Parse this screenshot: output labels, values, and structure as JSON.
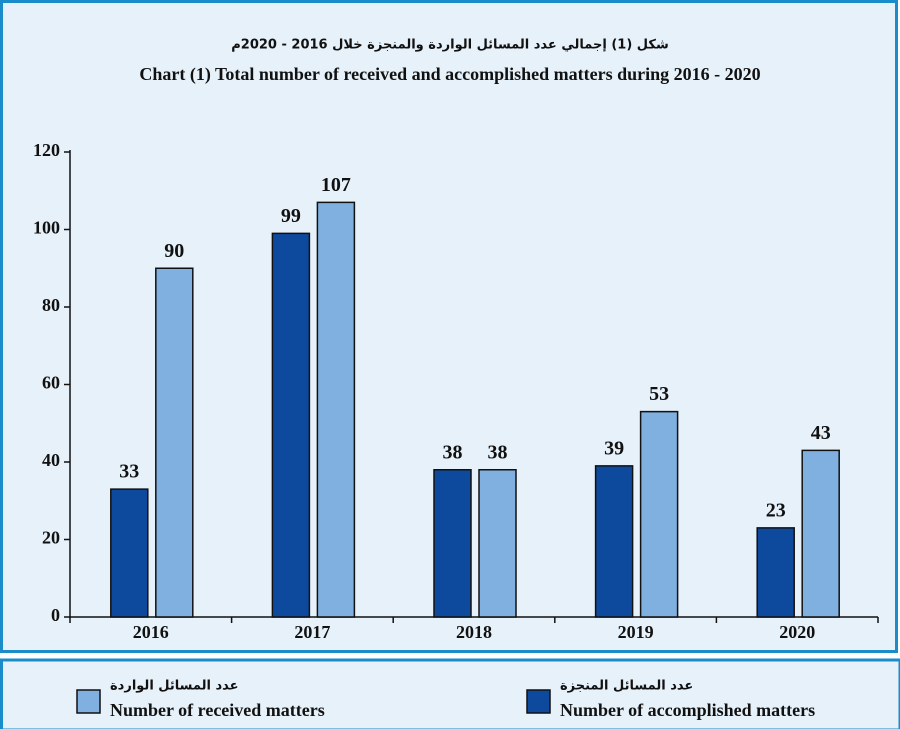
{
  "chart_data": {
    "type": "bar",
    "title_ar": "شكل (1) إجمالي عدد المسائل الواردة والمنجزة خلال 2016 - 2020م",
    "title": "Chart (1) Total number of received and accomplished matters during 2016 - 2020",
    "categories": [
      "2016",
      "2017",
      "2018",
      "2019",
      "2020"
    ],
    "series": [
      {
        "name": "Number of accomplished matters",
        "name_ar": "عدد المسائل المنجزة",
        "color": "#0d4a9e",
        "values": [
          33,
          99,
          38,
          39,
          23
        ]
      },
      {
        "name": "Number of received matters",
        "name_ar": "عدد المسائل الواردة",
        "color": "#7fb0e0",
        "values": [
          90,
          107,
          38,
          53,
          43
        ]
      }
    ],
    "ylim": [
      0,
      120
    ],
    "yticks": [
      0,
      20,
      40,
      60,
      80,
      100,
      120
    ],
    "grid": false
  }
}
